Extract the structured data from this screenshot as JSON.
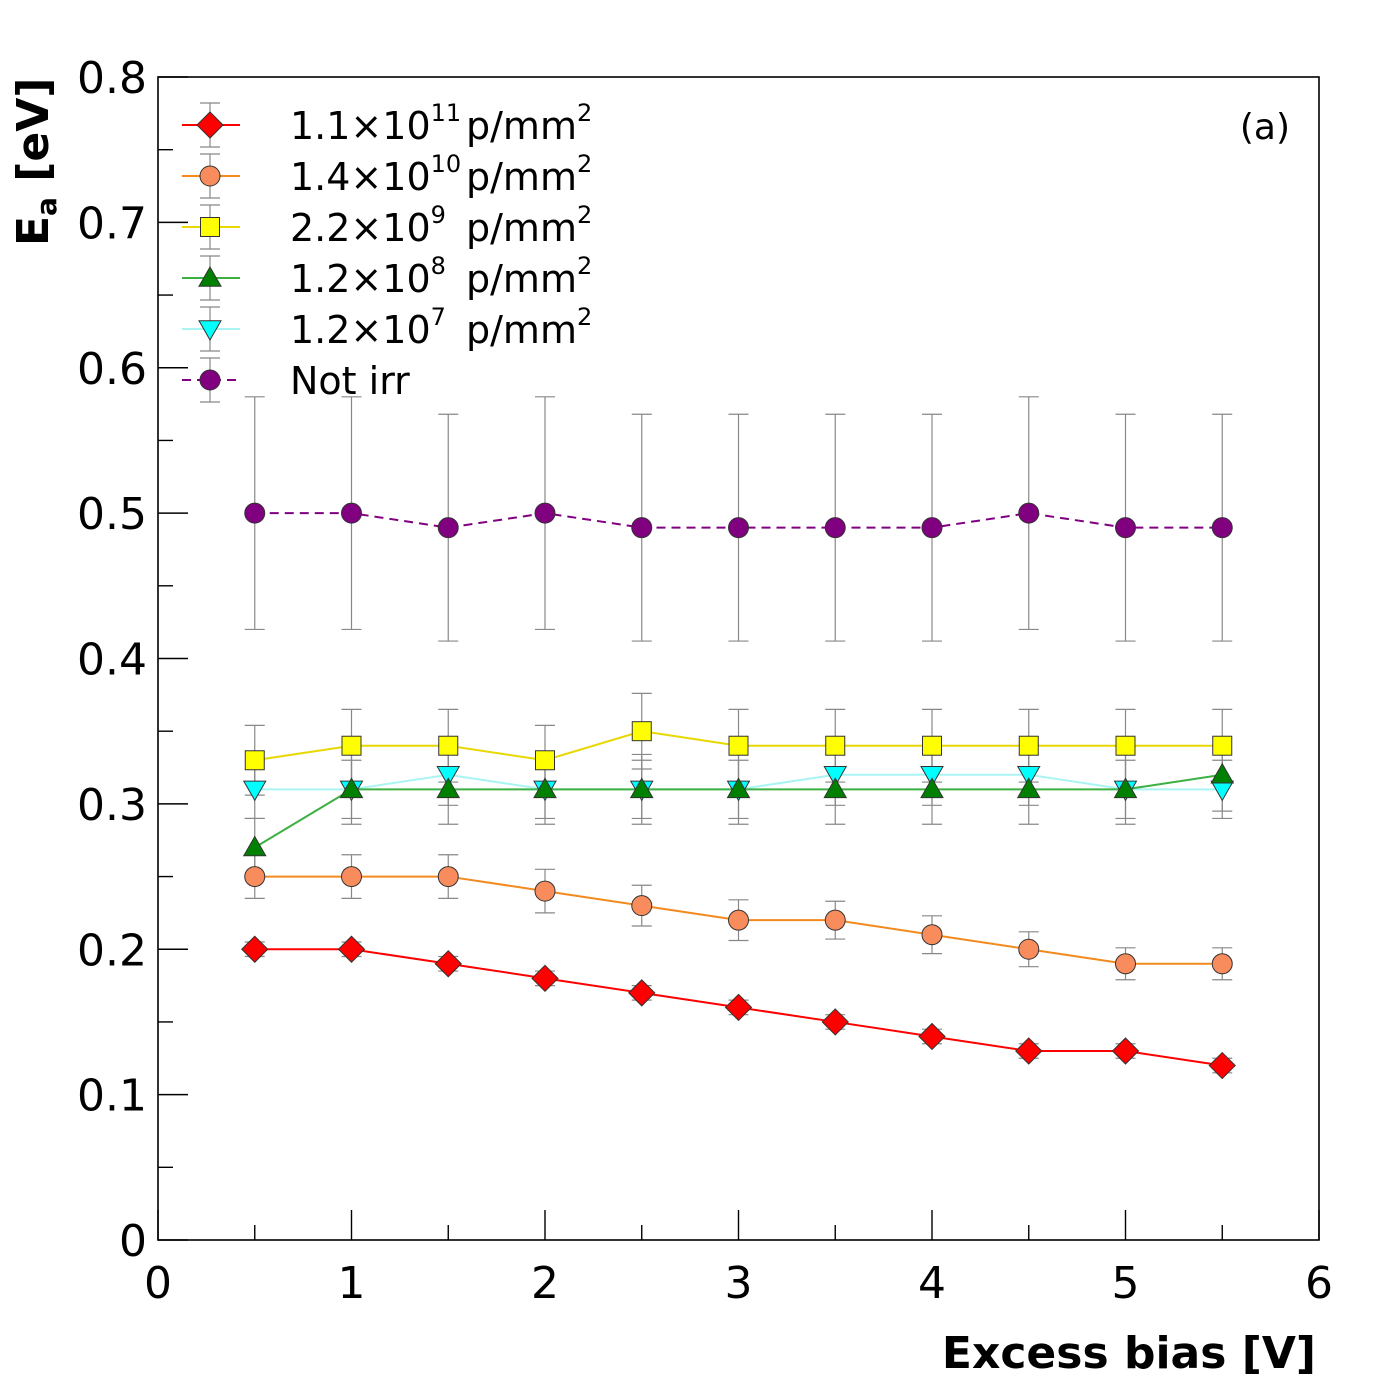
{
  "chart_data": {
    "type": "line",
    "xlabel": "Excess bias [V]",
    "ylabel": {
      "base": "E",
      "sub": "a",
      "rest": " [eV]"
    },
    "xlim": [
      0,
      6
    ],
    "ylim": [
      0,
      0.8
    ],
    "x_ticks": [
      "0",
      "1",
      "2",
      "3",
      "4",
      "5",
      "6"
    ],
    "y_ticks": [
      "0",
      "0.1",
      "0.2",
      "0.3",
      "0.4",
      "0.5",
      "0.6",
      "0.7",
      "0.8"
    ],
    "grid": false,
    "legend_position": "top-left",
    "annotation": "(a)",
    "x": [
      0.5,
      1.0,
      1.5,
      2.0,
      2.5,
      3.0,
      3.5,
      4.0,
      4.5,
      5.0,
      5.5
    ],
    "series": [
      {
        "name": {
          "base": "1.1×10",
          "sup": "11",
          "unit": "p/mm",
          "unit_sup": "2"
        },
        "marker": "diamond",
        "color": "#ff0000",
        "line_color": "#ff0000",
        "dashed": false,
        "values": [
          0.2,
          0.2,
          0.19,
          0.18,
          0.17,
          0.16,
          0.15,
          0.14,
          0.13,
          0.13,
          0.12
        ],
        "errors": [
          0.005,
          0.005,
          0.005,
          0.005,
          0.005,
          0.005,
          0.005,
          0.005,
          0.005,
          0.005,
          0.005
        ]
      },
      {
        "name": {
          "base": "1.4×10",
          "sup": "10",
          "unit": "p/mm",
          "unit_sup": "2"
        },
        "marker": "circle",
        "color": "#f88c5c",
        "line_color": "#f28a1e",
        "dashed": false,
        "values": [
          0.25,
          0.25,
          0.25,
          0.24,
          0.23,
          0.22,
          0.22,
          0.21,
          0.2,
          0.19,
          0.19
        ],
        "errors": [
          0.015,
          0.015,
          0.015,
          0.015,
          0.014,
          0.014,
          0.013,
          0.013,
          0.012,
          0.011,
          0.011
        ]
      },
      {
        "name": {
          "base": "2.2×10",
          "sup": "9",
          "unit": "p/mm",
          "unit_sup": "2"
        },
        "marker": "square",
        "color": "#ffff00",
        "line_color": "#e8d800",
        "dashed": false,
        "values": [
          0.33,
          0.34,
          0.34,
          0.33,
          0.35,
          0.34,
          0.34,
          0.34,
          0.34,
          0.34,
          0.34
        ],
        "errors": [
          0.024,
          0.025,
          0.025,
          0.024,
          0.026,
          0.025,
          0.025,
          0.025,
          0.025,
          0.025,
          0.025
        ]
      },
      {
        "name": {
          "base": "1.2×10",
          "sup": "8",
          "unit": "p/mm",
          "unit_sup": "2"
        },
        "marker": "triangle-up",
        "color": "#008000",
        "line_color": "#3cb043",
        "dashed": false,
        "values": [
          0.27,
          0.31,
          0.31,
          0.31,
          0.31,
          0.31,
          0.31,
          0.31,
          0.31,
          0.31,
          0.32
        ],
        "errors": [
          0.02,
          0.024,
          0.024,
          0.024,
          0.024,
          0.024,
          0.024,
          0.024,
          0.024,
          0.024,
          0.025
        ]
      },
      {
        "name": {
          "base": "1.2×10",
          "sup": "7",
          "unit": "p/mm",
          "unit_sup": "2"
        },
        "marker": "triangle-down",
        "color": "#00ffff",
        "line_color": "#aaf4f4",
        "dashed": false,
        "values": [
          0.31,
          0.31,
          0.32,
          0.31,
          0.31,
          0.31,
          0.32,
          0.32,
          0.32,
          0.31,
          0.31
        ],
        "errors": [
          0.02,
          0.02,
          0.021,
          0.02,
          0.02,
          0.02,
          0.021,
          0.021,
          0.021,
          0.02,
          0.02
        ]
      },
      {
        "name": {
          "base": "Not irr",
          "sup": "",
          "unit": "",
          "unit_sup": ""
        },
        "marker": "circle",
        "color": "#800080",
        "line_color": "#800080",
        "dashed": true,
        "values": [
          0.5,
          0.5,
          0.49,
          0.5,
          0.49,
          0.49,
          0.49,
          0.49,
          0.5,
          0.49,
          0.49
        ],
        "errors": [
          0.08,
          0.08,
          0.078,
          0.08,
          0.078,
          0.078,
          0.078,
          0.078,
          0.08,
          0.078,
          0.078
        ]
      }
    ]
  }
}
